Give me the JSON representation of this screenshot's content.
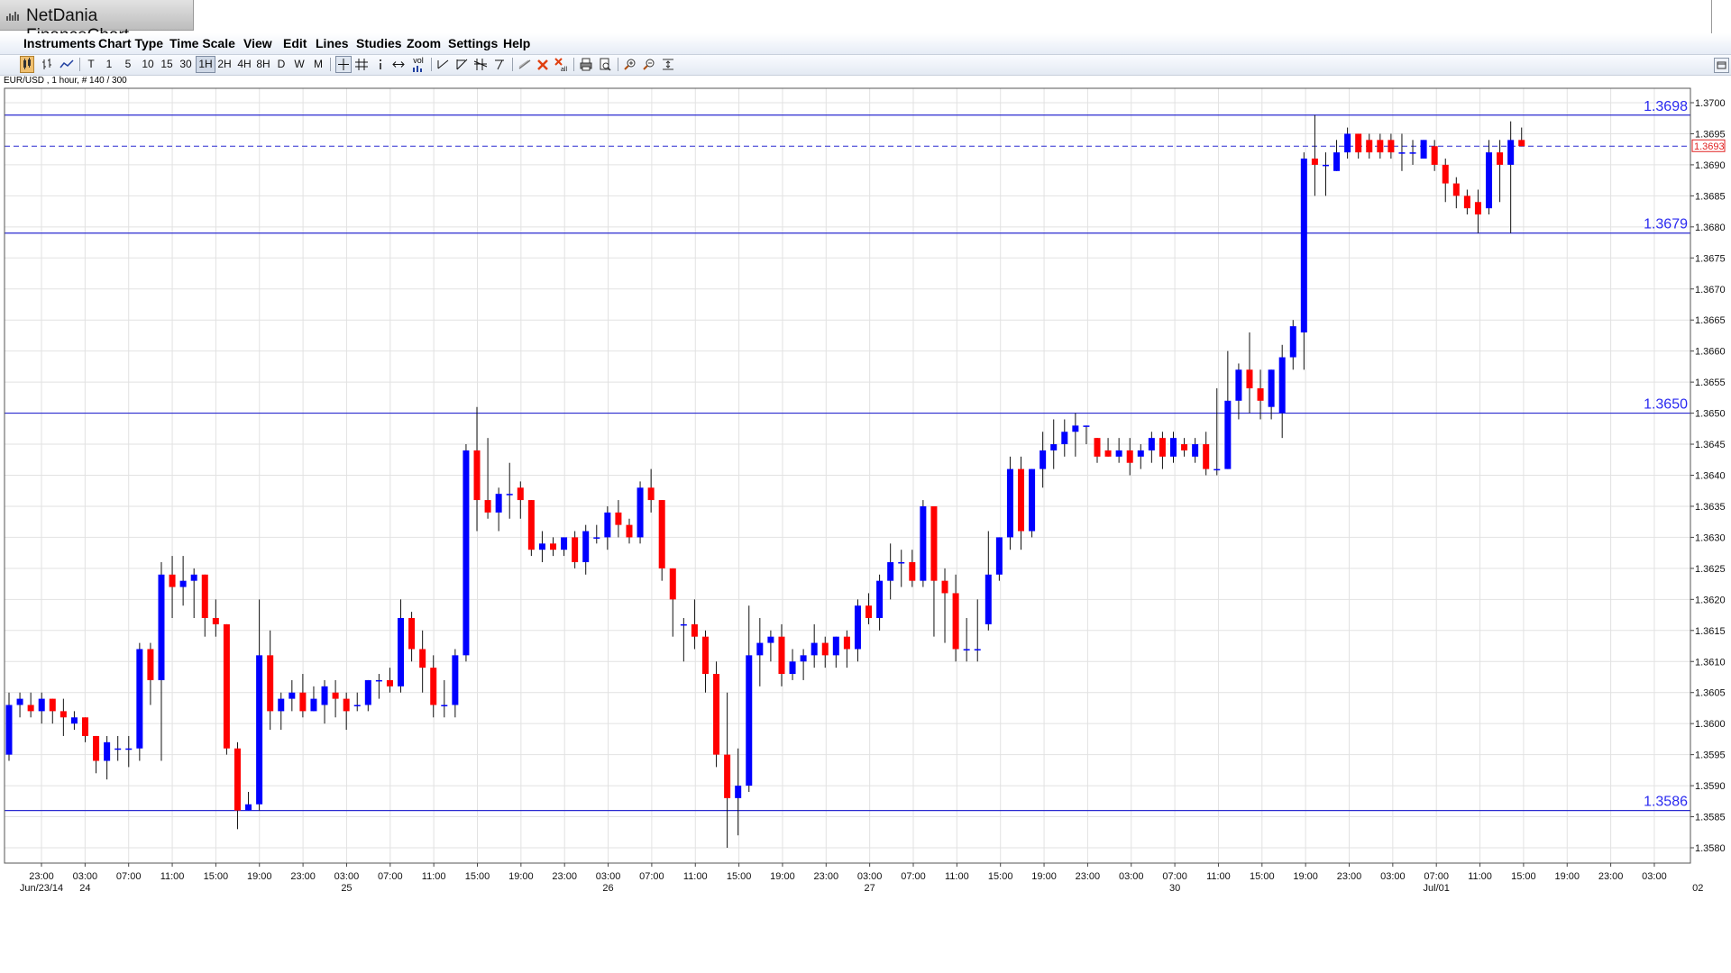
{
  "window": {
    "title": "NetDania FinanceChart"
  },
  "menu": [
    "Instruments",
    "Chart Type",
    "Time Scale",
    "View",
    "Edit",
    "Lines",
    "Studies",
    "Zoom",
    "Settings",
    "Help"
  ],
  "toolbar": {
    "timeframes": [
      "T",
      "1",
      "5",
      "10",
      "15",
      "30",
      "1H",
      "2H",
      "4H",
      "8H",
      "D",
      "W",
      "M"
    ],
    "selected_timeframe": "1H",
    "vol_label": "vol"
  },
  "instrument_label": "EUR/USD , 1 hour, # 140 / 300",
  "chart_data": {
    "type": "candlestick",
    "instrument": "EUR/USD",
    "interval": "1 hour",
    "ylim": [
      1.3577,
      1.3704
    ],
    "y_ticks": [
      "1.3580",
      "1.3585",
      "1.3590",
      "1.3595",
      "1.3600",
      "1.3605",
      "1.3610",
      "1.3615",
      "1.3620",
      "1.3625",
      "1.3630",
      "1.3635",
      "1.3640",
      "1.3645",
      "1.3650",
      "1.3655",
      "1.3660",
      "1.3665",
      "1.3670",
      "1.3675",
      "1.3680",
      "1.3685",
      "1.3690",
      "1.3695",
      "1.3700"
    ],
    "x_ticks": [
      "23:00",
      "03:00",
      "07:00",
      "11:00",
      "15:00",
      "19:00",
      "23:00",
      "03:00",
      "07:00",
      "11:00",
      "15:00",
      "19:00",
      "23:00",
      "03:00",
      "07:00",
      "11:00",
      "15:00",
      "19:00",
      "23:00",
      "03:00",
      "07:00",
      "11:00",
      "15:00",
      "19:00",
      "23:00",
      "03:00",
      "07:00",
      "11:00",
      "15:00",
      "19:00",
      "23:00",
      "03:00",
      "07:00",
      "11:00",
      "15:00",
      "19:00",
      "23:00",
      "03:00"
    ],
    "date_labels": [
      {
        "text": "Jun/23/14",
        "tick": 0
      },
      {
        "text": "24",
        "tick": 1
      },
      {
        "text": "25",
        "tick": 7
      },
      {
        "text": "26",
        "tick": 13
      },
      {
        "text": "27",
        "tick": 19
      },
      {
        "text": "30",
        "tick": 26
      },
      {
        "text": "Jul/01",
        "tick": 32
      },
      {
        "text": "02",
        "tick": 38
      }
    ],
    "horizontal_lines": [
      {
        "value": 1.3698,
        "label": "1.3698"
      },
      {
        "value": 1.3679,
        "label": "1.3679"
      },
      {
        "value": 1.365,
        "label": "1.3650"
      },
      {
        "value": 1.3586,
        "label": "1.3586"
      }
    ],
    "current_price": {
      "value": 1.3693,
      "label": "1.3693"
    },
    "up_color": "#0000ff",
    "down_color": "#ff0000",
    "grid": true,
    "candles": [
      {
        "o": 1.3595,
        "h": 1.3605,
        "l": 1.3594,
        "c": 1.3603
      },
      {
        "o": 1.3603,
        "h": 1.3605,
        "l": 1.3601,
        "c": 1.3604
      },
      {
        "o": 1.3603,
        "h": 1.3605,
        "l": 1.3601,
        "c": 1.3602
      },
      {
        "o": 1.3602,
        "h": 1.3605,
        "l": 1.36,
        "c": 1.3604
      },
      {
        "o": 1.3604,
        "h": 1.3604,
        "l": 1.36,
        "c": 1.3602
      },
      {
        "o": 1.3602,
        "h": 1.3604,
        "l": 1.3598,
        "c": 1.3601
      },
      {
        "o": 1.36,
        "h": 1.3602,
        "l": 1.3599,
        "c": 1.3601
      },
      {
        "o": 1.3601,
        "h": 1.3601,
        "l": 1.3597,
        "c": 1.3598
      },
      {
        "o": 1.3598,
        "h": 1.3598,
        "l": 1.3592,
        "c": 1.3594
      },
      {
        "o": 1.3594,
        "h": 1.3598,
        "l": 1.3591,
        "c": 1.3597
      },
      {
        "o": 1.3596,
        "h": 1.3598,
        "l": 1.3594,
        "c": 1.3596
      },
      {
        "o": 1.3596,
        "h": 1.3598,
        "l": 1.3593,
        "c": 1.3596
      },
      {
        "o": 1.3596,
        "h": 1.3613,
        "l": 1.3594,
        "c": 1.3612
      },
      {
        "o": 1.3612,
        "h": 1.3613,
        "l": 1.3603,
        "c": 1.3607
      },
      {
        "o": 1.3607,
        "h": 1.3626,
        "l": 1.3594,
        "c": 1.3624
      },
      {
        "o": 1.3624,
        "h": 1.3627,
        "l": 1.3617,
        "c": 1.3622
      },
      {
        "o": 1.3622,
        "h": 1.3627,
        "l": 1.3619,
        "c": 1.3623
      },
      {
        "o": 1.3623,
        "h": 1.3625,
        "l": 1.3617,
        "c": 1.3624
      },
      {
        "o": 1.3624,
        "h": 1.3624,
        "l": 1.3614,
        "c": 1.3617
      },
      {
        "o": 1.3617,
        "h": 1.362,
        "l": 1.3614,
        "c": 1.3616
      },
      {
        "o": 1.3616,
        "h": 1.3616,
        "l": 1.3595,
        "c": 1.3596
      },
      {
        "o": 1.3596,
        "h": 1.3597,
        "l": 1.3583,
        "c": 1.3586
      },
      {
        "o": 1.3586,
        "h": 1.3589,
        "l": 1.3586,
        "c": 1.3587
      },
      {
        "o": 1.3587,
        "h": 1.362,
        "l": 1.3586,
        "c": 1.3611
      },
      {
        "o": 1.3611,
        "h": 1.3615,
        "l": 1.3599,
        "c": 1.3602
      },
      {
        "o": 1.3602,
        "h": 1.3605,
        "l": 1.3599,
        "c": 1.3604
      },
      {
        "o": 1.3604,
        "h": 1.3607,
        "l": 1.3602,
        "c": 1.3605
      },
      {
        "o": 1.3605,
        "h": 1.3608,
        "l": 1.3601,
        "c": 1.3602
      },
      {
        "o": 1.3602,
        "h": 1.3606,
        "l": 1.3602,
        "c": 1.3604
      },
      {
        "o": 1.3603,
        "h": 1.3607,
        "l": 1.36,
        "c": 1.3606
      },
      {
        "o": 1.3605,
        "h": 1.3607,
        "l": 1.3601,
        "c": 1.3604
      },
      {
        "o": 1.3604,
        "h": 1.3605,
        "l": 1.3599,
        "c": 1.3602
      },
      {
        "o": 1.3603,
        "h": 1.3605,
        "l": 1.3602,
        "c": 1.3603
      },
      {
        "o": 1.3603,
        "h": 1.3607,
        "l": 1.3602,
        "c": 1.3607
      },
      {
        "o": 1.3607,
        "h": 1.3608,
        "l": 1.3604,
        "c": 1.3607
      },
      {
        "o": 1.3607,
        "h": 1.3609,
        "l": 1.3605,
        "c": 1.3606
      },
      {
        "o": 1.3606,
        "h": 1.362,
        "l": 1.3605,
        "c": 1.3617
      },
      {
        "o": 1.3617,
        "h": 1.3618,
        "l": 1.361,
        "c": 1.3612
      },
      {
        "o": 1.3612,
        "h": 1.3615,
        "l": 1.3605,
        "c": 1.3609
      },
      {
        "o": 1.3609,
        "h": 1.3611,
        "l": 1.3601,
        "c": 1.3603
      },
      {
        "o": 1.3603,
        "h": 1.3607,
        "l": 1.3601,
        "c": 1.3603
      },
      {
        "o": 1.3603,
        "h": 1.3612,
        "l": 1.3601,
        "c": 1.3611
      },
      {
        "o": 1.3611,
        "h": 1.3645,
        "l": 1.361,
        "c": 1.3644
      },
      {
        "o": 1.3644,
        "h": 1.3651,
        "l": 1.3631,
        "c": 1.3636
      },
      {
        "o": 1.3636,
        "h": 1.3646,
        "l": 1.3633,
        "c": 1.3634
      },
      {
        "o": 1.3634,
        "h": 1.3638,
        "l": 1.3631,
        "c": 1.3637
      },
      {
        "o": 1.3637,
        "h": 1.3642,
        "l": 1.3633,
        "c": 1.3637
      },
      {
        "o": 1.3638,
        "h": 1.3639,
        "l": 1.3633,
        "c": 1.3636
      },
      {
        "o": 1.3636,
        "h": 1.3636,
        "l": 1.3627,
        "c": 1.3628
      },
      {
        "o": 1.3628,
        "h": 1.3631,
        "l": 1.3626,
        "c": 1.3629
      },
      {
        "o": 1.3629,
        "h": 1.363,
        "l": 1.3627,
        "c": 1.3628
      },
      {
        "o": 1.3628,
        "h": 1.363,
        "l": 1.3627,
        "c": 1.363
      },
      {
        "o": 1.363,
        "h": 1.3631,
        "l": 1.3625,
        "c": 1.3626
      },
      {
        "o": 1.3626,
        "h": 1.3632,
        "l": 1.3624,
        "c": 1.3631
      },
      {
        "o": 1.363,
        "h": 1.3632,
        "l": 1.3629,
        "c": 1.363
      },
      {
        "o": 1.363,
        "h": 1.3635,
        "l": 1.3628,
        "c": 1.3634
      },
      {
        "o": 1.3634,
        "h": 1.3636,
        "l": 1.363,
        "c": 1.3632
      },
      {
        "o": 1.3632,
        "h": 1.3633,
        "l": 1.3629,
        "c": 1.363
      },
      {
        "o": 1.363,
        "h": 1.3639,
        "l": 1.3629,
        "c": 1.3638
      },
      {
        "o": 1.3638,
        "h": 1.3641,
        "l": 1.3634,
        "c": 1.3636
      },
      {
        "o": 1.3636,
        "h": 1.3636,
        "l": 1.3623,
        "c": 1.3625
      },
      {
        "o": 1.3625,
        "h": 1.3625,
        "l": 1.3614,
        "c": 1.362
      },
      {
        "o": 1.3616,
        "h": 1.3617,
        "l": 1.361,
        "c": 1.3616
      },
      {
        "o": 1.3616,
        "h": 1.362,
        "l": 1.3612,
        "c": 1.3614
      },
      {
        "o": 1.3614,
        "h": 1.3615,
        "l": 1.3605,
        "c": 1.3608
      },
      {
        "o": 1.3608,
        "h": 1.361,
        "l": 1.3593,
        "c": 1.3595
      },
      {
        "o": 1.3595,
        "h": 1.3605,
        "l": 1.358,
        "c": 1.3588
      },
      {
        "o": 1.3588,
        "h": 1.3596,
        "l": 1.3582,
        "c": 1.359
      },
      {
        "o": 1.359,
        "h": 1.3619,
        "l": 1.3589,
        "c": 1.3611
      },
      {
        "o": 1.3611,
        "h": 1.3617,
        "l": 1.3606,
        "c": 1.3613
      },
      {
        "o": 1.3613,
        "h": 1.3615,
        "l": 1.361,
        "c": 1.3614
      },
      {
        "o": 1.3614,
        "h": 1.3616,
        "l": 1.3606,
        "c": 1.3608
      },
      {
        "o": 1.3608,
        "h": 1.3612,
        "l": 1.3607,
        "c": 1.361
      },
      {
        "o": 1.361,
        "h": 1.3612,
        "l": 1.3607,
        "c": 1.3611
      },
      {
        "o": 1.3611,
        "h": 1.3616,
        "l": 1.3609,
        "c": 1.3613
      },
      {
        "o": 1.3613,
        "h": 1.3614,
        "l": 1.3609,
        "c": 1.3611
      },
      {
        "o": 1.3611,
        "h": 1.3614,
        "l": 1.3609,
        "c": 1.3614
      },
      {
        "o": 1.3614,
        "h": 1.3615,
        "l": 1.3609,
        "c": 1.3612
      },
      {
        "o": 1.3612,
        "h": 1.362,
        "l": 1.361,
        "c": 1.3619
      },
      {
        "o": 1.3619,
        "h": 1.3621,
        "l": 1.3616,
        "c": 1.3617
      },
      {
        "o": 1.3617,
        "h": 1.3624,
        "l": 1.3615,
        "c": 1.3623
      },
      {
        "o": 1.3623,
        "h": 1.3629,
        "l": 1.362,
        "c": 1.3626
      },
      {
        "o": 1.3626,
        "h": 1.3628,
        "l": 1.3622,
        "c": 1.3626
      },
      {
        "o": 1.3626,
        "h": 1.3628,
        "l": 1.3622,
        "c": 1.3623
      },
      {
        "o": 1.3623,
        "h": 1.3636,
        "l": 1.3622,
        "c": 1.3635
      },
      {
        "o": 1.3635,
        "h": 1.3635,
        "l": 1.3614,
        "c": 1.3623
      },
      {
        "o": 1.3623,
        "h": 1.3625,
        "l": 1.3613,
        "c": 1.3621
      },
      {
        "o": 1.3621,
        "h": 1.3624,
        "l": 1.361,
        "c": 1.3612
      },
      {
        "o": 1.3612,
        "h": 1.3617,
        "l": 1.361,
        "c": 1.3612
      },
      {
        "o": 1.3612,
        "h": 1.362,
        "l": 1.361,
        "c": 1.3612
      },
      {
        "o": 1.3616,
        "h": 1.3631,
        "l": 1.3615,
        "c": 1.3624
      },
      {
        "o": 1.3624,
        "h": 1.363,
        "l": 1.3623,
        "c": 1.363
      },
      {
        "o": 1.363,
        "h": 1.3643,
        "l": 1.3628,
        "c": 1.3641
      },
      {
        "o": 1.3641,
        "h": 1.3643,
        "l": 1.3628,
        "c": 1.3631
      },
      {
        "o": 1.3631,
        "h": 1.3641,
        "l": 1.363,
        "c": 1.3641
      },
      {
        "o": 1.3641,
        "h": 1.3647,
        "l": 1.3638,
        "c": 1.3644
      },
      {
        "o": 1.3644,
        "h": 1.3649,
        "l": 1.3641,
        "c": 1.3645
      },
      {
        "o": 1.3645,
        "h": 1.3649,
        "l": 1.3643,
        "c": 1.3647
      },
      {
        "o": 1.3647,
        "h": 1.365,
        "l": 1.3643,
        "c": 1.3648
      },
      {
        "o": 1.3648,
        "h": 1.3648,
        "l": 1.3645,
        "c": 1.3648
      },
      {
        "o": 1.3646,
        "h": 1.3646,
        "l": 1.3642,
        "c": 1.3643
      },
      {
        "o": 1.3644,
        "h": 1.3646,
        "l": 1.3643,
        "c": 1.3643
      },
      {
        "o": 1.3643,
        "h": 1.3646,
        "l": 1.3642,
        "c": 1.3644
      },
      {
        "o": 1.3644,
        "h": 1.3646,
        "l": 1.364,
        "c": 1.3642
      },
      {
        "o": 1.3643,
        "h": 1.3645,
        "l": 1.3641,
        "c": 1.3644
      },
      {
        "o": 1.3644,
        "h": 1.3647,
        "l": 1.3642,
        "c": 1.3646
      },
      {
        "o": 1.3646,
        "h": 1.3647,
        "l": 1.3641,
        "c": 1.3643
      },
      {
        "o": 1.3643,
        "h": 1.3647,
        "l": 1.3642,
        "c": 1.3646
      },
      {
        "o": 1.3645,
        "h": 1.3646,
        "l": 1.3643,
        "c": 1.3644
      },
      {
        "o": 1.3643,
        "h": 1.3646,
        "l": 1.3642,
        "c": 1.3645
      },
      {
        "o": 1.3645,
        "h": 1.3647,
        "l": 1.364,
        "c": 1.3641
      },
      {
        "o": 1.3641,
        "h": 1.3654,
        "l": 1.364,
        "c": 1.3641
      },
      {
        "o": 1.3641,
        "h": 1.366,
        "l": 1.3641,
        "c": 1.3652
      },
      {
        "o": 1.3652,
        "h": 1.3658,
        "l": 1.3649,
        "c": 1.3657
      },
      {
        "o": 1.3657,
        "h": 1.3663,
        "l": 1.365,
        "c": 1.3654
      },
      {
        "o": 1.3654,
        "h": 1.3657,
        "l": 1.3649,
        "c": 1.3652
      },
      {
        "o": 1.3651,
        "h": 1.3657,
        "l": 1.3649,
        "c": 1.3657
      },
      {
        "o": 1.365,
        "h": 1.3661,
        "l": 1.3646,
        "c": 1.3659
      },
      {
        "o": 1.3659,
        "h": 1.3665,
        "l": 1.3657,
        "c": 1.3664
      },
      {
        "o": 1.3663,
        "h": 1.3692,
        "l": 1.3657,
        "c": 1.3691
      },
      {
        "o": 1.3691,
        "h": 1.3698,
        "l": 1.3685,
        "c": 1.369
      },
      {
        "o": 1.369,
        "h": 1.3692,
        "l": 1.3685,
        "c": 1.369
      },
      {
        "o": 1.3689,
        "h": 1.3694,
        "l": 1.3689,
        "c": 1.3692
      },
      {
        "o": 1.3692,
        "h": 1.3696,
        "l": 1.3691,
        "c": 1.3695
      },
      {
        "o": 1.3695,
        "h": 1.3695,
        "l": 1.3691,
        "c": 1.3692
      },
      {
        "o": 1.3694,
        "h": 1.3695,
        "l": 1.3691,
        "c": 1.3692
      },
      {
        "o": 1.3694,
        "h": 1.3695,
        "l": 1.3691,
        "c": 1.3692
      },
      {
        "o": 1.3694,
        "h": 1.3695,
        "l": 1.3691,
        "c": 1.3692
      },
      {
        "o": 1.3692,
        "h": 1.3695,
        "l": 1.3689,
        "c": 1.3692
      },
      {
        "o": 1.3692,
        "h": 1.3694,
        "l": 1.369,
        "c": 1.3692
      },
      {
        "o": 1.3691,
        "h": 1.3694,
        "l": 1.3691,
        "c": 1.3694
      },
      {
        "o": 1.3693,
        "h": 1.3694,
        "l": 1.3689,
        "c": 1.369
      },
      {
        "o": 1.369,
        "h": 1.3691,
        "l": 1.3684,
        "c": 1.3687
      },
      {
        "o": 1.3687,
        "h": 1.3688,
        "l": 1.3683,
        "c": 1.3685
      },
      {
        "o": 1.3685,
        "h": 1.3686,
        "l": 1.3682,
        "c": 1.3683
      },
      {
        "o": 1.3684,
        "h": 1.3686,
        "l": 1.3679,
        "c": 1.3682
      },
      {
        "o": 1.3683,
        "h": 1.3694,
        "l": 1.3682,
        "c": 1.3692
      },
      {
        "o": 1.3692,
        "h": 1.3694,
        "l": 1.3684,
        "c": 1.369
      },
      {
        "o": 1.369,
        "h": 1.3697,
        "l": 1.3679,
        "c": 1.3694
      },
      {
        "o": 1.3694,
        "h": 1.3696,
        "l": 1.3693,
        "c": 1.3693
      }
    ]
  }
}
